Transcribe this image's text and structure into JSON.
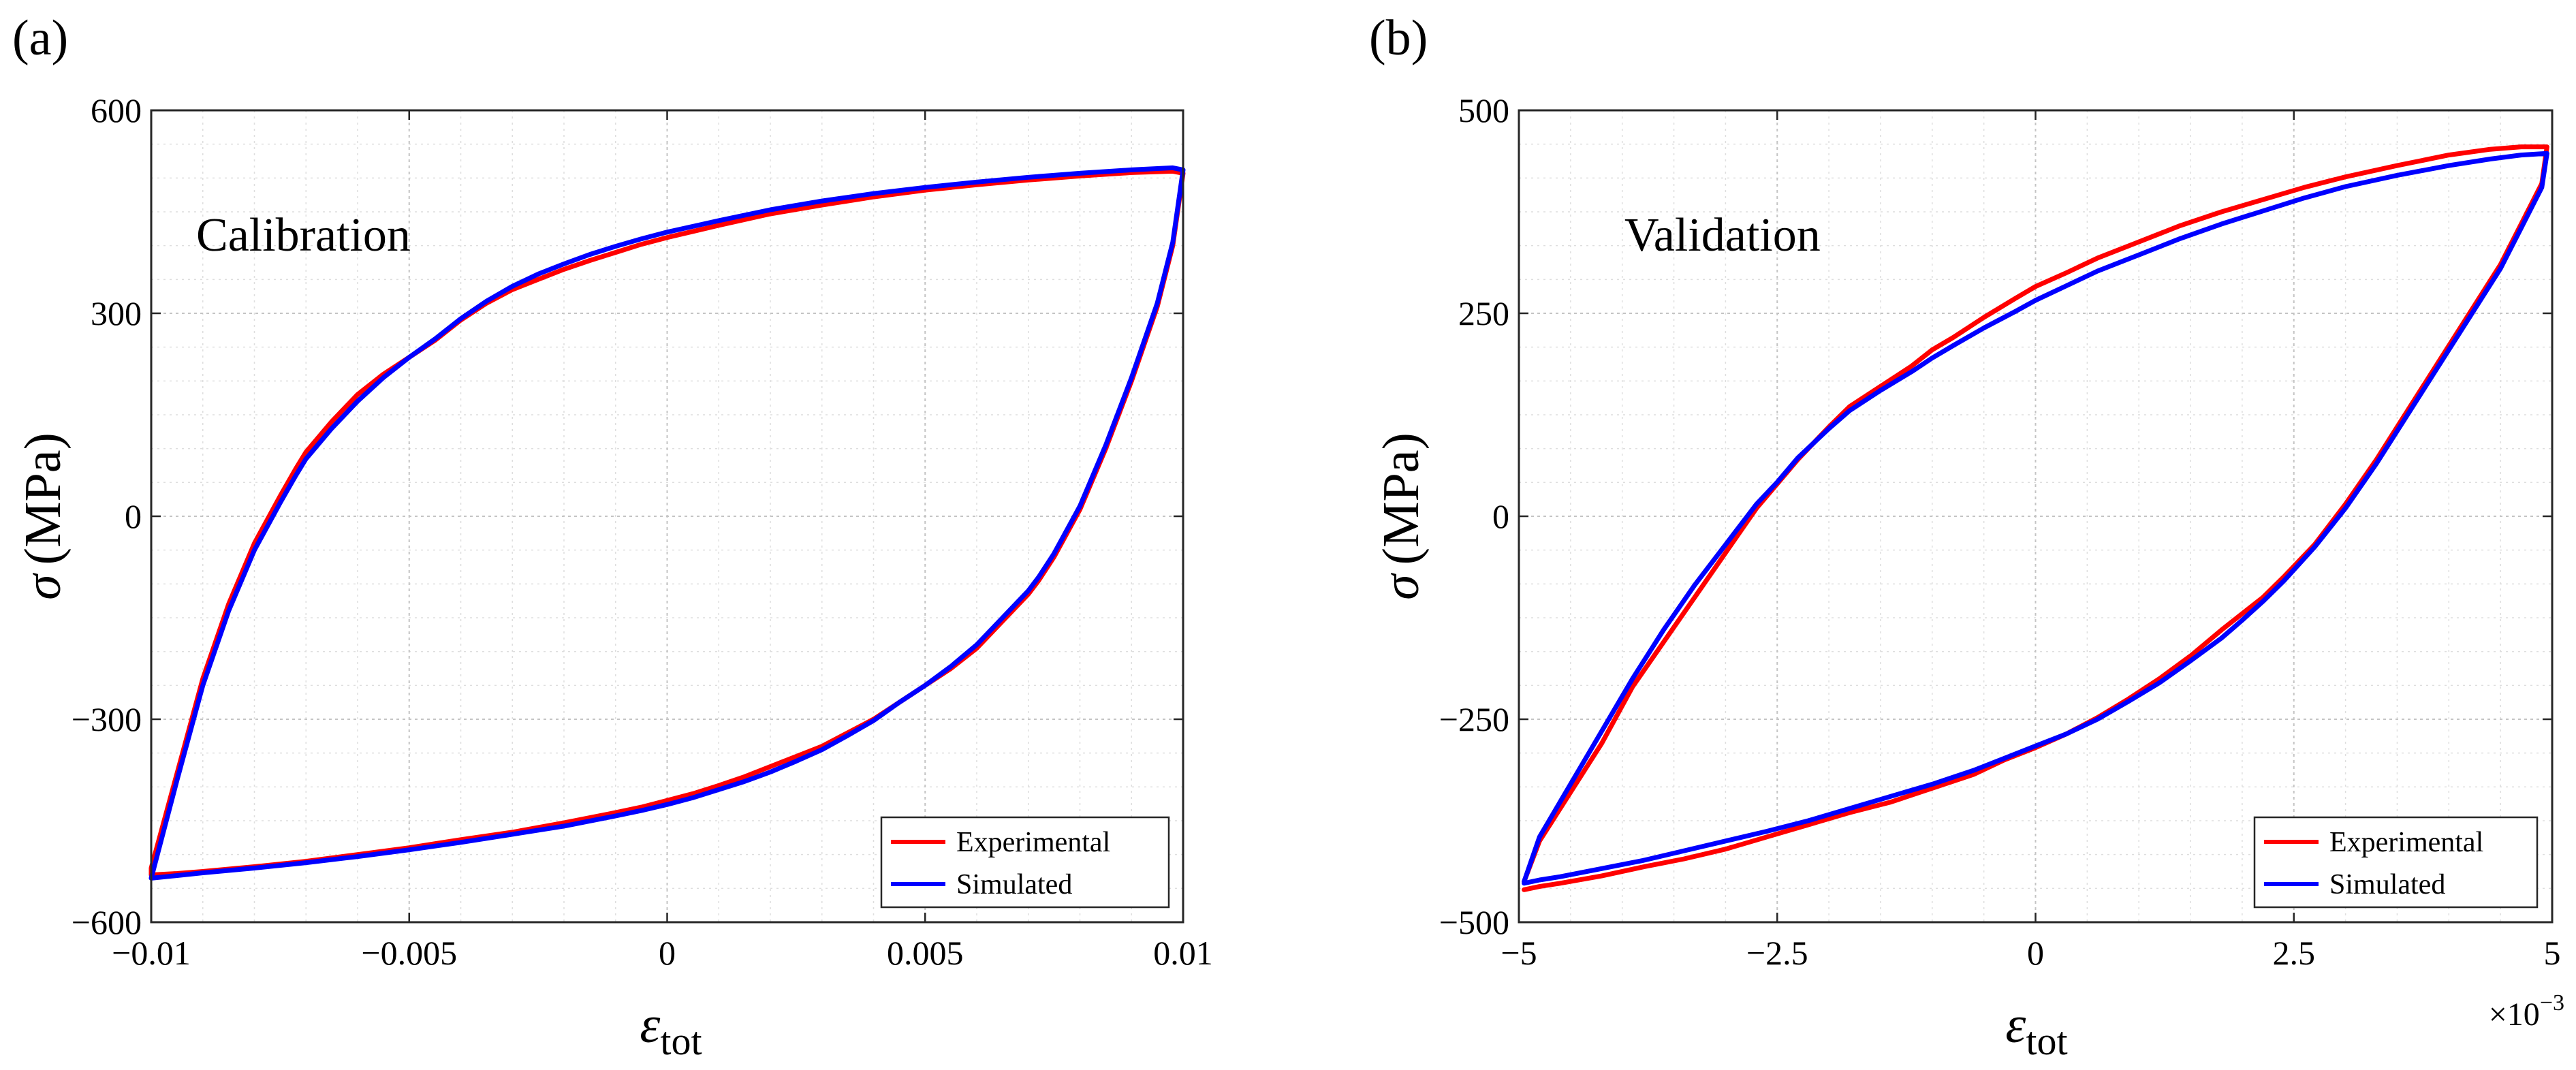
{
  "charts": [
    {
      "panel": "(a)",
      "annotation": "Calibration",
      "ylabel_symbol": "σ",
      "ylabel_unit": "(MPa)",
      "xlabel_symbol": "ε",
      "xlabel_sub": "tot",
      "x_exponent_base": "",
      "x_exponent_power": "",
      "legend": [
        "Experimental",
        "Simulated"
      ],
      "legend_position": "bottom-right",
      "grid": true,
      "minor_grid": true,
      "x_ticks": [
        {
          "value": -0.01,
          "label": "−0.01"
        },
        {
          "value": -0.005,
          "label": "−0.005"
        },
        {
          "value": 0,
          "label": "0"
        },
        {
          "value": 0.005,
          "label": "0.005"
        },
        {
          "value": 0.01,
          "label": "0.01"
        }
      ],
      "y_ticks": [
        {
          "value": -600,
          "label": "−600"
        },
        {
          "value": -300,
          "label": "−300"
        },
        {
          "value": 0,
          "label": "0"
        },
        {
          "value": 300,
          "label": "300"
        },
        {
          "value": 600,
          "label": "600"
        }
      ]
    },
    {
      "panel": "(b)",
      "annotation": "Validation",
      "ylabel_symbol": "σ",
      "ylabel_unit": "(MPa)",
      "xlabel_symbol": "ε",
      "xlabel_sub": "tot",
      "x_exponent_base": "×10",
      "x_exponent_power": "−3",
      "legend": [
        "Experimental",
        "Simulated"
      ],
      "legend_position": "bottom-right",
      "grid": true,
      "minor_grid": true,
      "x_ticks": [
        {
          "value": -5,
          "label": "−5"
        },
        {
          "value": -2.5,
          "label": "−2.5"
        },
        {
          "value": 0,
          "label": "0"
        },
        {
          "value": 2.5,
          "label": "2.5"
        },
        {
          "value": 5,
          "label": "5"
        }
      ],
      "y_ticks": [
        {
          "value": -500,
          "label": "−500"
        },
        {
          "value": -250,
          "label": "−250"
        },
        {
          "value": 0,
          "label": "0"
        },
        {
          "value": 250,
          "label": "250"
        },
        {
          "value": 500,
          "label": "500"
        }
      ]
    }
  ],
  "colors": {
    "experimental": "#ff0000",
    "simulated": "#0000ff"
  },
  "chart_data": [
    {
      "type": "line",
      "xlim": [
        -0.01,
        0.01
      ],
      "ylim": [
        -600,
        600
      ],
      "series": [
        {
          "name": "Experimental",
          "color": "#ff0000",
          "x": [
            -0.01,
            -0.0095,
            -0.009,
            -0.0085,
            -0.008,
            -0.0075,
            -0.0072,
            -0.007,
            -0.0065,
            -0.006,
            -0.0055,
            -0.005,
            -0.0045,
            -0.004,
            -0.0035,
            -0.003,
            -0.0025,
            -0.002,
            -0.0015,
            -0.001,
            -0.0005,
            0,
            0.001,
            0.002,
            0.003,
            0.004,
            0.005,
            0.006,
            0.007,
            0.008,
            0.009,
            0.0098,
            0.01,
            0.0098,
            0.0095,
            0.009,
            0.0085,
            0.008,
            0.0075,
            0.0072,
            0.007,
            0.0065,
            0.006,
            0.0055,
            0.005,
            0.0045,
            0.004,
            0.0035,
            0.003,
            0.0025,
            0.002,
            0.0015,
            0.001,
            0.0005,
            0,
            -0.0005,
            -0.001,
            -0.002,
            -0.003,
            -0.004,
            -0.005,
            -0.006,
            -0.007,
            -0.008,
            -0.009,
            -0.0095,
            -0.01,
            -0.01
          ],
          "y": [
            -520,
            -380,
            -240,
            -130,
            -40,
            30,
            70,
            95,
            140,
            180,
            210,
            235,
            260,
            290,
            315,
            335,
            350,
            365,
            378,
            390,
            402,
            412,
            430,
            447,
            460,
            472,
            482,
            490,
            497,
            503,
            508,
            510,
            507,
            400,
            310,
            200,
            100,
            10,
            -60,
            -95,
            -115,
            -155,
            -195,
            -225,
            -250,
            -275,
            -300,
            -320,
            -340,
            -355,
            -370,
            -385,
            -398,
            -410,
            -420,
            -430,
            -438,
            -453,
            -467,
            -478,
            -490,
            -500,
            -510,
            -518,
            -525,
            -528,
            -530,
            -520
          ]
        },
        {
          "name": "Simulated",
          "color": "#0000ff",
          "x": [
            -0.01,
            -0.0095,
            -0.009,
            -0.0085,
            -0.008,
            -0.0075,
            -0.0072,
            -0.007,
            -0.0065,
            -0.006,
            -0.0055,
            -0.005,
            -0.0045,
            -0.004,
            -0.0035,
            -0.003,
            -0.0025,
            -0.002,
            -0.0015,
            -0.001,
            -0.0005,
            0,
            0.001,
            0.002,
            0.003,
            0.004,
            0.005,
            0.006,
            0.007,
            0.008,
            0.009,
            0.0098,
            0.01,
            0.0098,
            0.0095,
            0.009,
            0.0085,
            0.008,
            0.0075,
            0.0072,
            0.007,
            0.0065,
            0.006,
            0.0055,
            0.005,
            0.0045,
            0.004,
            0.0035,
            0.003,
            0.0025,
            0.002,
            0.0015,
            0.001,
            0.0005,
            0,
            -0.0005,
            -0.001,
            -0.002,
            -0.003,
            -0.004,
            -0.005,
            -0.006,
            -0.007,
            -0.008,
            -0.009,
            -0.0095,
            -0.01
          ],
          "y": [
            -535,
            -390,
            -250,
            -140,
            -50,
            20,
            60,
            85,
            130,
            170,
            205,
            235,
            262,
            292,
            318,
            340,
            358,
            373,
            387,
            399,
            410,
            420,
            437,
            453,
            466,
            477,
            486,
            494,
            501,
            507,
            512,
            515,
            512,
            405,
            315,
            205,
            105,
            15,
            -55,
            -90,
            -110,
            -150,
            -190,
            -222,
            -250,
            -275,
            -302,
            -324,
            -345,
            -362,
            -378,
            -392,
            -404,
            -416,
            -426,
            -435,
            -443,
            -458,
            -470,
            -482,
            -493,
            -503,
            -512,
            -520,
            -527,
            -531,
            -535
          ]
        }
      ]
    },
    {
      "type": "line",
      "xlim": [
        -5,
        5
      ],
      "ylim": [
        -500,
        500
      ],
      "series": [
        {
          "name": "Experimental",
          "color": "#ff0000",
          "x": [
            -4.95,
            -4.8,
            -4.5,
            -4.2,
            -3.9,
            -3.6,
            -3.3,
            -3.0,
            -2.7,
            -2.5,
            -2.3,
            -2.0,
            -1.8,
            -1.5,
            -1.2,
            -1.0,
            -0.8,
            -0.5,
            -0.2,
            0,
            0.3,
            0.6,
            1.0,
            1.4,
            1.8,
            2.2,
            2.6,
            3.0,
            3.5,
            4.0,
            4.4,
            4.7,
            4.95,
            4.9,
            4.7,
            4.5,
            4.2,
            3.9,
            3.6,
            3.3,
            3.0,
            2.7,
            2.4,
            2.2,
            2.0,
            1.8,
            1.5,
            1.2,
            0.9,
            0.6,
            0.3,
            0,
            -0.3,
            -0.6,
            -1.0,
            -1.4,
            -1.8,
            -2.2,
            -2.6,
            -3.0,
            -3.4,
            -3.8,
            -4.2,
            -4.6,
            -4.8,
            -4.95
          ],
          "y": [
            -450,
            -400,
            -340,
            -280,
            -210,
            -155,
            -100,
            -45,
            10,
            40,
            70,
            110,
            135,
            160,
            185,
            205,
            220,
            245,
            268,
            283,
            300,
            318,
            338,
            358,
            375,
            390,
            405,
            418,
            432,
            445,
            452,
            455,
            455,
            410,
            360,
            310,
            250,
            190,
            130,
            70,
            15,
            -35,
            -75,
            -100,
            -120,
            -140,
            -172,
            -200,
            -225,
            -248,
            -268,
            -285,
            -300,
            -318,
            -335,
            -352,
            -365,
            -380,
            -395,
            -410,
            -422,
            -432,
            -443,
            -452,
            -456,
            -460
          ]
        },
        {
          "name": "Simulated",
          "color": "#0000ff",
          "x": [
            -4.95,
            -4.8,
            -4.5,
            -4.2,
            -3.9,
            -3.6,
            -3.3,
            -3.0,
            -2.7,
            -2.5,
            -2.3,
            -2.0,
            -1.8,
            -1.5,
            -1.2,
            -1.0,
            -0.8,
            -0.5,
            -0.2,
            0,
            0.3,
            0.6,
            1.0,
            1.4,
            1.8,
            2.2,
            2.6,
            3.0,
            3.5,
            4.0,
            4.4,
            4.7,
            4.95,
            4.9,
            4.7,
            4.5,
            4.2,
            3.9,
            3.6,
            3.3,
            3.0,
            2.7,
            2.4,
            2.2,
            2.0,
            1.8,
            1.5,
            1.2,
            0.9,
            0.6,
            0.3,
            0,
            -0.3,
            -0.6,
            -1.0,
            -1.4,
            -1.8,
            -2.2,
            -2.6,
            -3.0,
            -3.4,
            -3.8,
            -4.2,
            -4.6,
            -4.8,
            -4.95
          ],
          "y": [
            -450,
            -395,
            -330,
            -265,
            -200,
            -140,
            -85,
            -35,
            15,
            42,
            72,
            108,
            130,
            155,
            178,
            195,
            210,
            232,
            252,
            266,
            284,
            302,
            322,
            342,
            360,
            376,
            392,
            406,
            420,
            432,
            440,
            445,
            447,
            405,
            355,
            305,
            245,
            185,
            125,
            65,
            10,
            -38,
            -80,
            -105,
            -128,
            -150,
            -178,
            -205,
            -228,
            -250,
            -268,
            -283,
            -298,
            -313,
            -330,
            -345,
            -360,
            -375,
            -388,
            -400,
            -412,
            -424,
            -434,
            -444,
            -448,
            -452
          ]
        }
      ]
    }
  ]
}
